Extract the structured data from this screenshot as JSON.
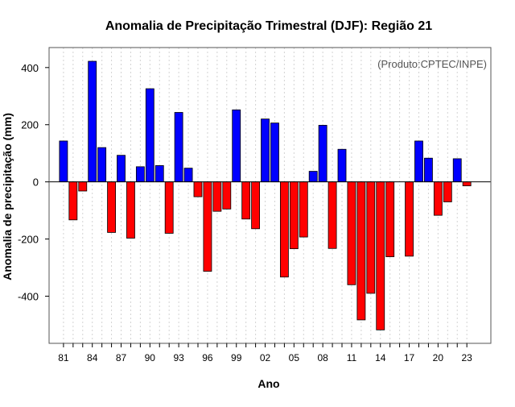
{
  "chart_data": {
    "type": "bar",
    "title": "Anomalia de Precipitação Trimestral (DJF): Região 21",
    "xlabel": "Ano",
    "ylabel": "Anomalia de precipitação (mm)",
    "credit": "(Produto:CPTEC/INPE)",
    "ylim": [
      -565,
      470
    ],
    "xlim": [
      1979.5,
      2025.5
    ],
    "yticks": [
      -400,
      -200,
      0,
      200,
      400
    ],
    "ytick_labels": [
      "-400",
      "-200",
      "0",
      "200",
      "400"
    ],
    "xticks": [
      1981,
      1984,
      1987,
      1990,
      1993,
      1996,
      1999,
      2002,
      2005,
      2008,
      2011,
      2014,
      2017,
      2020,
      2023
    ],
    "xtick_labels": [
      "81",
      "84",
      "87",
      "90",
      "93",
      "96",
      "99",
      "02",
      "05",
      "08",
      "11",
      "14",
      "17",
      "20",
      "23"
    ],
    "grid": true,
    "colors": {
      "positive": "#0000ff",
      "negative": "#ff0000",
      "frame": "#555555",
      "grid": "#d3d3d3",
      "zero_line": "#000000"
    },
    "years": [
      1981,
      1982,
      1983,
      1984,
      1985,
      1986,
      1987,
      1988,
      1989,
      1990,
      1991,
      1992,
      1993,
      1994,
      1995,
      1996,
      1997,
      1998,
      1999,
      2000,
      2001,
      2002,
      2003,
      2004,
      2005,
      2006,
      2007,
      2008,
      2009,
      2010,
      2011,
      2012,
      2013,
      2014,
      2015,
      2016,
      2017,
      2018,
      2019,
      2020,
      2021,
      2022,
      2023
    ],
    "values": [
      143,
      -133,
      -32,
      422,
      120,
      -177,
      93,
      -197,
      53,
      326,
      57,
      -180,
      243,
      48,
      -52,
      -313,
      -103,
      -95,
      252,
      -130,
      -164,
      220,
      206,
      -333,
      -234,
      -193,
      37,
      198,
      -233,
      114,
      -360,
      -483,
      -390,
      -518,
      -262,
      0,
      -260,
      143,
      83,
      -117,
      -70,
      81,
      -14
    ]
  }
}
